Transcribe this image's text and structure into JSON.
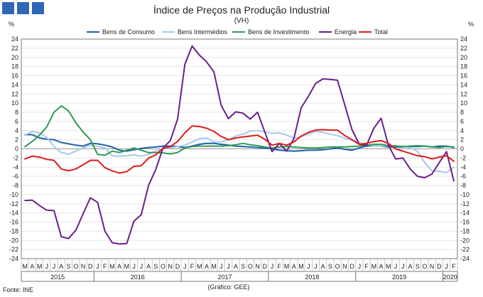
{
  "header": {
    "logo_colors": [
      "#2f67b5"
    ]
  },
  "chart_data": {
    "type": "line",
    "title": "Índice de Preços na Produção Industrial",
    "subtitle": "(VH)",
    "ylabel_left": "%",
    "ylabel_right": "%",
    "ylim": [
      -24,
      24
    ],
    "ytick_step": 2,
    "grid": true,
    "legend_position": "top",
    "month_labels": [
      "M",
      "A",
      "M",
      "J",
      "J",
      "A",
      "S",
      "O",
      "N",
      "D",
      "J",
      "F",
      "M",
      "A",
      "M",
      "J",
      "J",
      "A",
      "S",
      "O",
      "N",
      "D",
      "J",
      "F",
      "M",
      "A",
      "M",
      "J",
      "J",
      "A",
      "S",
      "O",
      "N",
      "D",
      "J",
      "F",
      "M",
      "A",
      "M",
      "J",
      "J",
      "A",
      "S",
      "O",
      "N",
      "D",
      "J",
      "F",
      "M",
      "A",
      "M",
      "J",
      "J",
      "A",
      "S",
      "O",
      "N",
      "D",
      "J",
      "F"
    ],
    "years": [
      {
        "label": "2015",
        "start": 0,
        "end": 9
      },
      {
        "label": "2016",
        "start": 10,
        "end": 21
      },
      {
        "label": "2017",
        "start": 22,
        "end": 33
      },
      {
        "label": "2018",
        "start": 34,
        "end": 45
      },
      {
        "label": "2019",
        "start": 46,
        "end": 57
      },
      {
        "label": "2020",
        "start": 58,
        "end": 59
      }
    ],
    "series": [
      {
        "name": "Bens de Consumo",
        "color": "#1f5fa8",
        "values": [
          3.1,
          3.1,
          2.4,
          2.1,
          2.0,
          1.4,
          1.1,
          0.8,
          0.6,
          1.2,
          1.1,
          0.8,
          0.4,
          -0.3,
          -0.5,
          -0.2,
          0.1,
          0.3,
          0.4,
          0.6,
          0.6,
          0.5,
          0.3,
          0.6,
          1.0,
          1.2,
          1.2,
          1.0,
          0.8,
          0.6,
          0.5,
          0.4,
          0.3,
          0.2,
          0.0,
          -0.3,
          -0.4,
          -0.5,
          -0.4,
          -0.3,
          -0.3,
          -0.2,
          0.0,
          0.2,
          -0.1,
          -0.3,
          0.2,
          0.6,
          0.7,
          0.6,
          0.4,
          0.4,
          0.4,
          0.5,
          0.5,
          0.6,
          0.4,
          0.6,
          0.6,
          0.3
        ]
      },
      {
        "name": "Bens Intermédios",
        "color": "#a8c8ec",
        "values": [
          3.0,
          3.8,
          3.5,
          2.5,
          0.5,
          -0.8,
          -1.2,
          -0.5,
          0.2,
          0.8,
          0.5,
          0.2,
          -1.5,
          -1.6,
          -1.5,
          -1.3,
          -1.6,
          -1.2,
          -0.5,
          0.0,
          0.2,
          0.5,
          0.8,
          1.5,
          2.2,
          2.4,
          1.5,
          1.5,
          2.0,
          2.8,
          3.2,
          3.9,
          4.0,
          3.7,
          3.4,
          3.5,
          3.0,
          2.4,
          2.6,
          3.3,
          3.8,
          3.6,
          3.2,
          2.9,
          2.3,
          1.9,
          1.4,
          0.9,
          0.7,
          0.6,
          0.7,
          0.7,
          0.5,
          0.2,
          -0.5,
          -3.0,
          -4.8,
          -4.9,
          -5.2,
          -4.0
        ]
      },
      {
        "name": "Bens de Investimento",
        "color": "#2e9b52",
        "values": [
          0.5,
          1.6,
          3.0,
          4.8,
          8.0,
          9.4,
          8.3,
          5.7,
          3.7,
          2.0,
          -1.2,
          -1.4,
          -0.5,
          -0.8,
          -0.3,
          0.2,
          -0.3,
          -0.8,
          -0.8,
          -0.9,
          -1.1,
          -0.8,
          0.2,
          0.5,
          0.6,
          0.6,
          0.6,
          0.6,
          0.7,
          0.9,
          1.2,
          0.9,
          0.7,
          0.4,
          0.2,
          0.4,
          0.5,
          0.4,
          0.3,
          0.2,
          0.2,
          0.3,
          0.4,
          0.4,
          0.4,
          0.5,
          0.6,
          0.8,
          1.0,
          1.0,
          0.7,
          0.6,
          0.5,
          0.6,
          0.7,
          0.6,
          0.4,
          0.3,
          0.5,
          0.4
        ]
      },
      {
        "name": "Energia",
        "color": "#6a1f8a",
        "values": [
          -11.3,
          -11.2,
          -12.4,
          -13.4,
          -13.5,
          -19.2,
          -19.6,
          -17.8,
          -14.2,
          -10.7,
          -11.7,
          -18.0,
          -20.5,
          -20.8,
          -20.7,
          -15.8,
          -14.4,
          -8.0,
          -4.5,
          0.2,
          1.8,
          6.5,
          18.5,
          22.5,
          20.5,
          19.0,
          16.8,
          9.5,
          6.6,
          8.1,
          7.8,
          6.5,
          8.0,
          3.7,
          -0.6,
          1.2,
          -0.5,
          2.2,
          9.0,
          11.5,
          14.3,
          15.3,
          15.2,
          15.0,
          9.6,
          4.2,
          1.0,
          0.8,
          4.5,
          6.7,
          0.8,
          -2.2,
          -2.0,
          -4.4,
          -6.0,
          -6.3,
          -5.5,
          -3.0,
          -0.6,
          -7.0
        ]
      },
      {
        "name": "Total",
        "color": "#e01b1b",
        "values": [
          -2.2,
          -1.6,
          -1.8,
          -2.3,
          -2.5,
          -4.4,
          -4.8,
          -4.4,
          -3.5,
          -2.5,
          -2.5,
          -4.1,
          -4.8,
          -5.3,
          -5.0,
          -3.8,
          -3.7,
          -2.0,
          -1.3,
          0.1,
          0.5,
          1.6,
          3.5,
          5.0,
          4.9,
          4.5,
          3.8,
          2.7,
          2.0,
          2.4,
          2.6,
          2.8,
          3.0,
          2.1,
          0.8,
          1.2,
          0.8,
          1.5,
          2.8,
          3.6,
          4.1,
          4.2,
          4.1,
          4.1,
          2.9,
          2.0,
          1.0,
          1.2,
          1.6,
          1.8,
          1.2,
          0.0,
          -0.5,
          -1.0,
          -1.5,
          -1.7,
          -2.2,
          -1.8,
          -1.5,
          -2.7
        ]
      }
    ]
  },
  "footer": {
    "source": "Fonte: INE",
    "note": "(Gráfico: GEE)"
  }
}
